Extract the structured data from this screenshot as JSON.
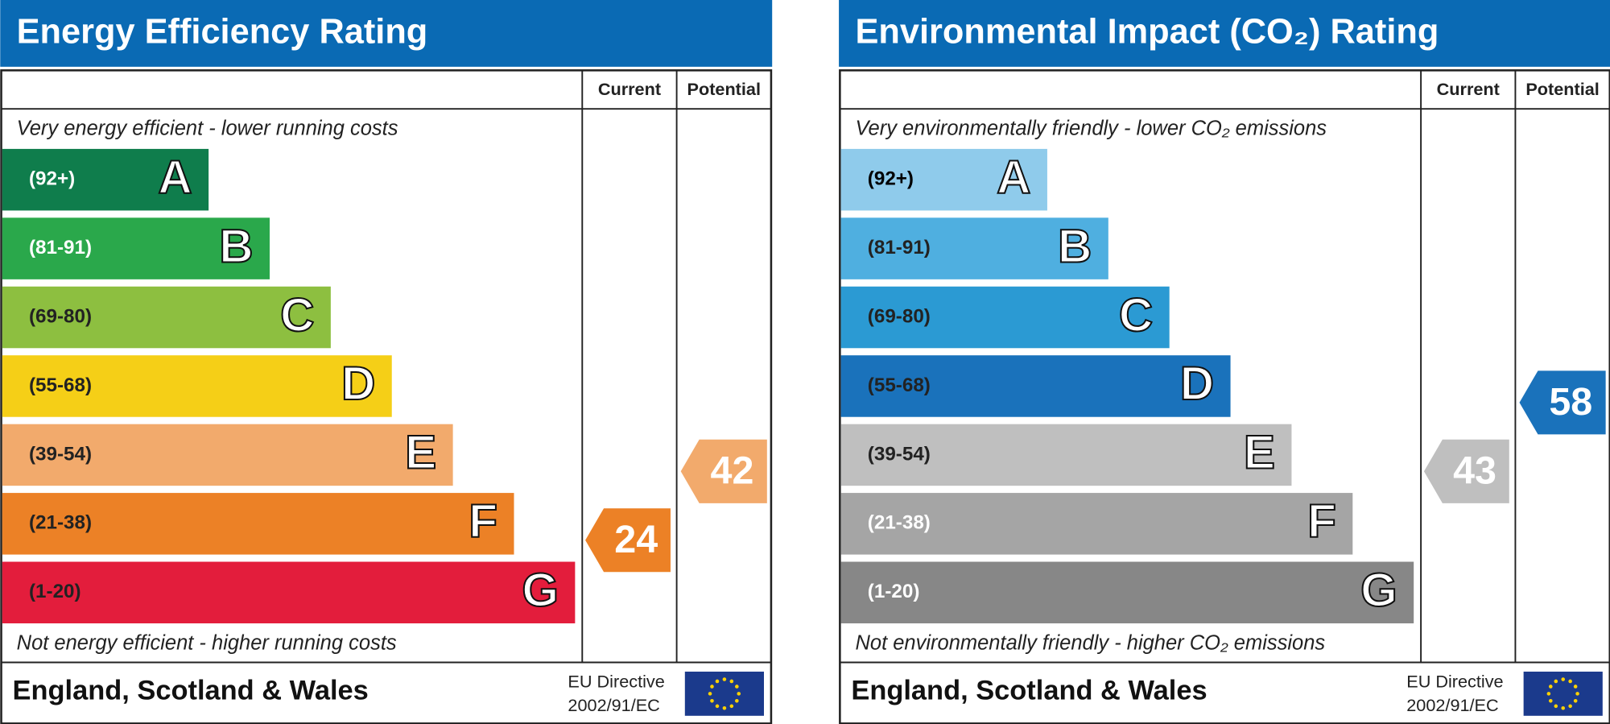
{
  "panels": [
    {
      "title": "Energy Efficiency Rating",
      "column_headers": [
        "Current",
        "Potential"
      ],
      "top_text": "Very energy efficient - lower running costs",
      "bottom_text": "Not energy efficient - higher running costs",
      "bands": [
        {
          "range": "(92+)",
          "letter": "A",
          "color": "#0f7d4c",
          "label_color": "#ffffff"
        },
        {
          "range": "(81-91)",
          "letter": "B",
          "color": "#2aa84b",
          "label_color": "#ffffff"
        },
        {
          "range": "(69-80)",
          "letter": "C",
          "color": "#8dbf40",
          "label_color": "#222222"
        },
        {
          "range": "(55-68)",
          "letter": "D",
          "color": "#f5cf17",
          "label_color": "#222222"
        },
        {
          "range": "(39-54)",
          "letter": "E",
          "color": "#f2aa6c",
          "label_color": "#222222"
        },
        {
          "range": "(21-38)",
          "letter": "F",
          "color": "#ec8126",
          "label_color": "#222222"
        },
        {
          "range": "(1-20)",
          "letter": "G",
          "color": "#e31d3c",
          "label_color": "#222222"
        }
      ],
      "current": 24,
      "potential": 42,
      "footer": "England, Scotland & Wales",
      "directive": [
        "EU Directive",
        "2002/91/EC"
      ]
    },
    {
      "title": "Environmental Impact (CO₂) Rating",
      "column_headers": [
        "Current",
        "Potential"
      ],
      "top_text": "Very environmentally friendly - lower CO₂ emissions",
      "bottom_text": "Not environmentally friendly - higher CO₂ emissions",
      "bands": [
        {
          "range": "(92+)",
          "letter": "A",
          "color": "#8fcbeb",
          "label_color": "#000000"
        },
        {
          "range": "(81-91)",
          "letter": "B",
          "color": "#4fafe0",
          "label_color": "#222222"
        },
        {
          "range": "(69-80)",
          "letter": "C",
          "color": "#2b9ad3",
          "label_color": "#222222"
        },
        {
          "range": "(55-68)",
          "letter": "D",
          "color": "#1a72bb",
          "label_color": "#222222"
        },
        {
          "range": "(39-54)",
          "letter": "E",
          "color": "#bfbfbf",
          "label_color": "#222222"
        },
        {
          "range": "(21-38)",
          "letter": "F",
          "color": "#a5a5a5",
          "label_color": "#ffffff"
        },
        {
          "range": "(1-20)",
          "letter": "G",
          "color": "#878787",
          "label_color": "#ffffff"
        }
      ],
      "current": 43,
      "potential": 58,
      "footer": "England, Scotland & Wales",
      "directive": [
        "EU Directive",
        "2002/91/EC"
      ]
    }
  ]
}
